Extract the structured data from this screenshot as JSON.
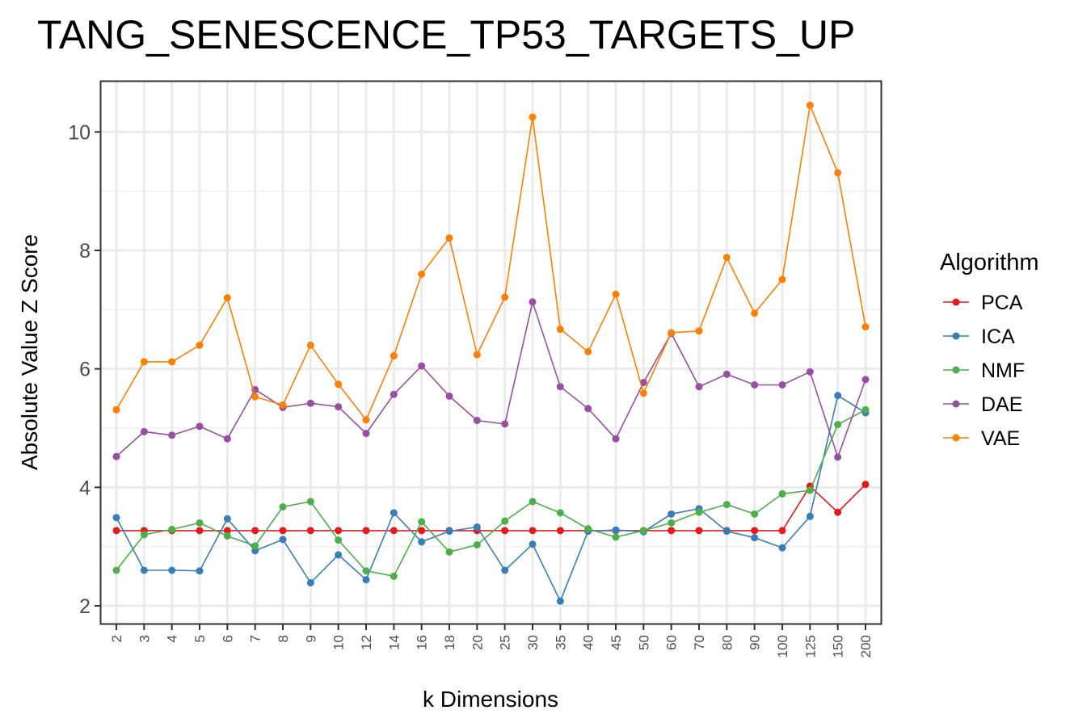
{
  "chart_data": {
    "type": "line",
    "title": "TANG_SENESCENCE_TP53_TARGETS_UP",
    "xlabel": "k Dimensions",
    "ylabel": "Absolute Value Z Score",
    "categories": [
      "2",
      "3",
      "4",
      "5",
      "6",
      "7",
      "8",
      "9",
      "10",
      "12",
      "14",
      "16",
      "18",
      "20",
      "25",
      "30",
      "35",
      "40",
      "45",
      "50",
      "60",
      "70",
      "80",
      "90",
      "100",
      "125",
      "150",
      "200"
    ],
    "ylim": [
      1.7,
      10.85
    ],
    "yticks": [
      2,
      4,
      6,
      8,
      10
    ],
    "grid": true,
    "legend": {
      "title": "Algorithm",
      "placement": "right"
    },
    "series": [
      {
        "name": "PCA",
        "color": "#E41A1C",
        "values": [
          3.27,
          3.27,
          3.27,
          3.27,
          3.27,
          3.27,
          3.27,
          3.27,
          3.27,
          3.27,
          3.27,
          3.27,
          3.27,
          3.27,
          3.27,
          3.27,
          3.27,
          3.27,
          3.27,
          3.27,
          3.27,
          3.27,
          3.27,
          3.27,
          3.27,
          4.02,
          3.58,
          4.05
        ]
      },
      {
        "name": "ICA",
        "color": "#377EB8",
        "values": [
          3.49,
          2.6,
          2.6,
          2.59,
          3.47,
          2.93,
          3.12,
          2.39,
          2.86,
          2.44,
          3.57,
          3.08,
          3.26,
          3.33,
          2.6,
          3.04,
          2.08,
          3.26,
          3.28,
          3.25,
          3.55,
          3.64,
          3.26,
          3.15,
          2.98,
          3.51,
          5.55,
          5.26
        ]
      },
      {
        "name": "NMF",
        "color": "#4DAF4A",
        "values": [
          2.6,
          3.2,
          3.29,
          3.4,
          3.18,
          3.01,
          3.67,
          3.76,
          3.11,
          2.59,
          2.5,
          3.42,
          2.91,
          3.03,
          3.43,
          3.76,
          3.57,
          3.3,
          3.16,
          3.27,
          3.4,
          3.58,
          3.71,
          3.55,
          3.89,
          3.95,
          5.06,
          5.31
        ]
      },
      {
        "name": "DAE",
        "color": "#984EA3",
        "values": [
          4.52,
          4.94,
          4.88,
          5.03,
          4.82,
          5.65,
          5.35,
          5.42,
          5.36,
          4.91,
          5.57,
          6.05,
          5.54,
          5.13,
          5.07,
          7.13,
          5.7,
          5.33,
          4.82,
          5.77,
          6.6,
          5.7,
          5.91,
          5.73,
          5.73,
          5.95,
          4.51,
          5.82
        ]
      },
      {
        "name": "VAE",
        "color": "#FF7F00",
        "values": [
          5.31,
          6.12,
          6.12,
          6.4,
          7.2,
          5.53,
          5.39,
          6.4,
          5.74,
          5.14,
          6.22,
          7.6,
          8.21,
          6.24,
          7.21,
          10.25,
          6.67,
          6.29,
          7.26,
          5.59,
          6.61,
          6.64,
          7.88,
          6.94,
          7.51,
          10.45,
          9.31,
          6.71
        ]
      }
    ]
  }
}
